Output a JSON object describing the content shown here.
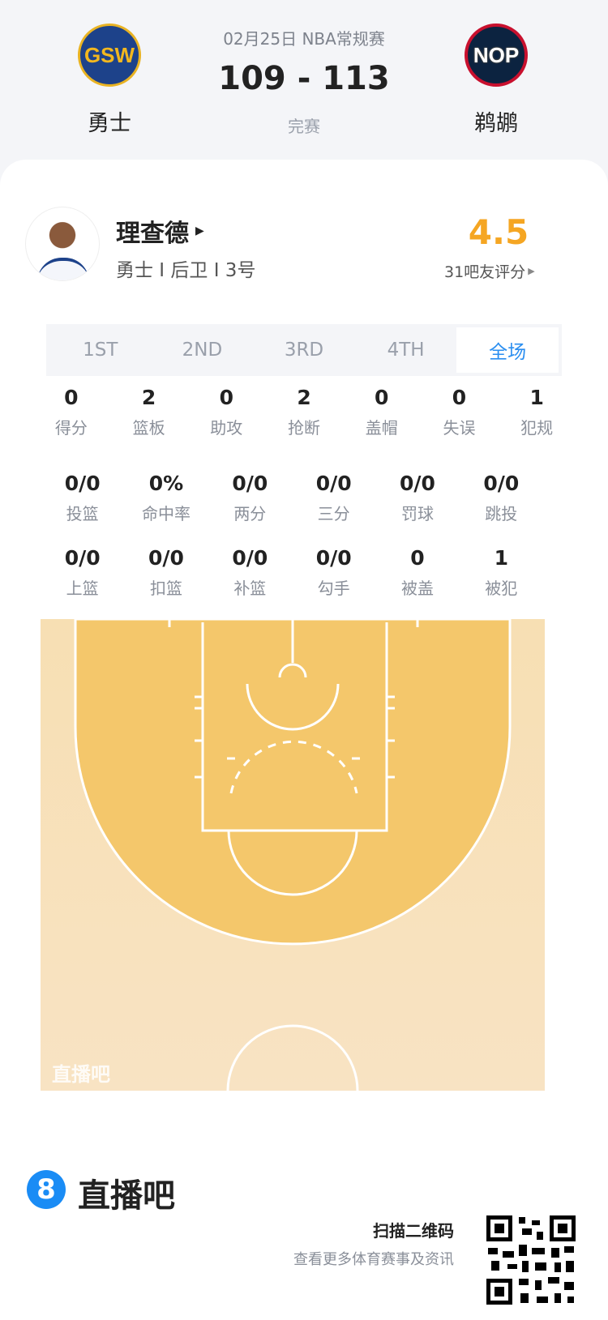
{
  "header": {
    "date_league": "02月25日 NBA常规赛",
    "score": "109 - 113",
    "status": "完赛",
    "home": {
      "name": "勇士",
      "logo_text": "GSW"
    },
    "away": {
      "name": "鹈鹕",
      "logo_text": "NOP"
    }
  },
  "player": {
    "name": "理查德",
    "info": "勇士 I 后卫 I 3号",
    "rating": "4.5",
    "rating_label": "31吧友评分",
    "rating_color": "#f5a623"
  },
  "tabs": [
    {
      "label": "1ST"
    },
    {
      "label": "2ND"
    },
    {
      "label": "3RD"
    },
    {
      "label": "4TH"
    },
    {
      "label": "全场",
      "active": true
    }
  ],
  "stats_row1": [
    {
      "v": "0",
      "l": "得分"
    },
    {
      "v": "2",
      "l": "篮板"
    },
    {
      "v": "0",
      "l": "助攻"
    },
    {
      "v": "2",
      "l": "抢断"
    },
    {
      "v": "0",
      "l": "盖帽"
    },
    {
      "v": "0",
      "l": "失误"
    },
    {
      "v": "1",
      "l": "犯规"
    }
  ],
  "stats_row2": [
    {
      "v": "0/0",
      "l": "投篮"
    },
    {
      "v": "0%",
      "l": "命中率"
    },
    {
      "v": "0/0",
      "l": "两分"
    },
    {
      "v": "0/0",
      "l": "三分"
    },
    {
      "v": "0/0",
      "l": "罚球"
    },
    {
      "v": "0/0",
      "l": "跳投"
    }
  ],
  "stats_row3": [
    {
      "v": "0/0",
      "l": "上篮"
    },
    {
      "v": "0/0",
      "l": "扣篮"
    },
    {
      "v": "0/0",
      "l": "补篮"
    },
    {
      "v": "0/0",
      "l": "勾手"
    },
    {
      "v": "0",
      "l": "被盖"
    },
    {
      "v": "1",
      "l": "被犯"
    }
  ],
  "court": {
    "watermark": "直播吧"
  },
  "footer": {
    "brand": "直播吧",
    "brand_icon": "8",
    "scan_title": "扫描二维码",
    "scan_sub": "查看更多体育赛事及资讯"
  }
}
